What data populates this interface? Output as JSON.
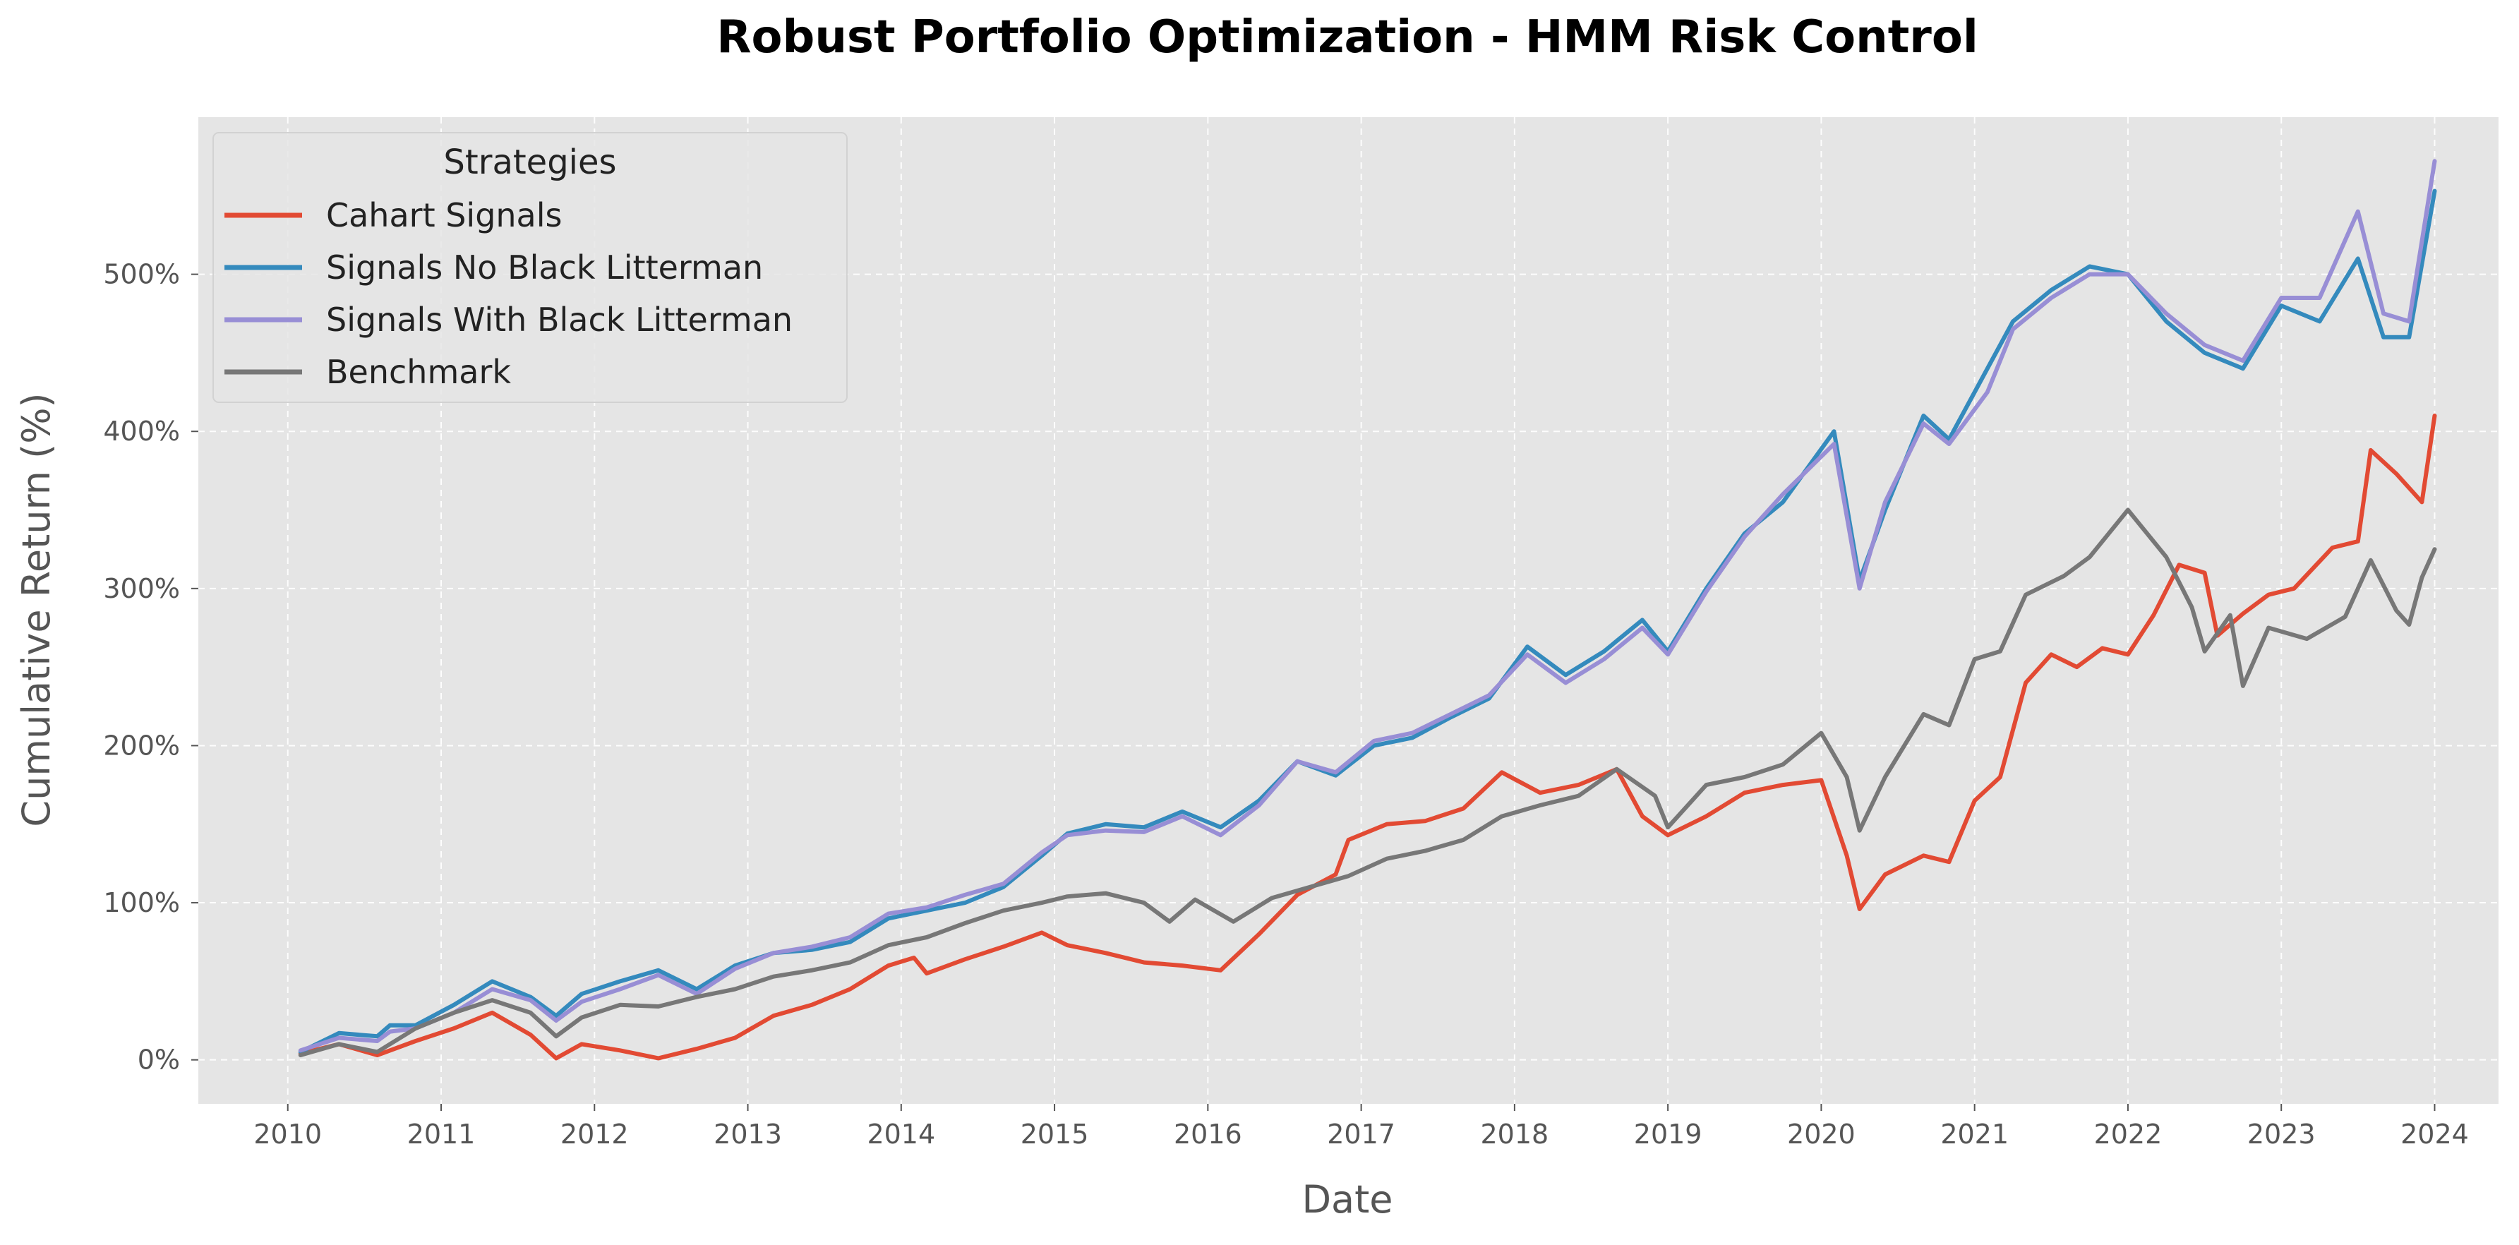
{
  "chart_data": {
    "type": "line",
    "title": "Robust Portfolio Optimization - HMM Risk Control",
    "xlabel": "Date",
    "ylabel": "Cumulative Return (%)",
    "xlim": [
      "2009-06",
      "2024-06"
    ],
    "ylim": [
      -28,
      600
    ],
    "x_ticks": [
      "2010",
      "2011",
      "2012",
      "2013",
      "2014",
      "2015",
      "2016",
      "2017",
      "2018",
      "2019",
      "2020",
      "2021",
      "2022",
      "2023",
      "2024"
    ],
    "y_ticks": [
      0,
      100,
      200,
      300,
      400,
      500
    ],
    "y_tick_labels": [
      "0%",
      "100%",
      "200%",
      "300%",
      "400%",
      "500%"
    ],
    "grid": true,
    "legend": {
      "title": "Strategies",
      "location": "top-left"
    },
    "colors": {
      "background": "#e5e5e5",
      "grid": "#ffffff"
    },
    "series": [
      {
        "name": "Cahart Signals",
        "color": "#e24a33",
        "points": [
          [
            "2010-02",
            4
          ],
          [
            "2010-05",
            10
          ],
          [
            "2010-08",
            3
          ],
          [
            "2010-11",
            12
          ],
          [
            "2011-02",
            20
          ],
          [
            "2011-05",
            30
          ],
          [
            "2011-08",
            16
          ],
          [
            "2011-10",
            1
          ],
          [
            "2011-12",
            10
          ],
          [
            "2012-03",
            6
          ],
          [
            "2012-06",
            1
          ],
          [
            "2012-09",
            7
          ],
          [
            "2012-12",
            14
          ],
          [
            "2013-03",
            28
          ],
          [
            "2013-06",
            35
          ],
          [
            "2013-09",
            45
          ],
          [
            "2013-12",
            60
          ],
          [
            "2014-02",
            65
          ],
          [
            "2014-03",
            55
          ],
          [
            "2014-06",
            64
          ],
          [
            "2014-09",
            72
          ],
          [
            "2014-12",
            81
          ],
          [
            "2015-02",
            73
          ],
          [
            "2015-05",
            68
          ],
          [
            "2015-08",
            62
          ],
          [
            "2015-11",
            60
          ],
          [
            "2016-02",
            57
          ],
          [
            "2016-05",
            80
          ],
          [
            "2016-08",
            105
          ],
          [
            "2016-11",
            118
          ],
          [
            "2016-12",
            140
          ],
          [
            "2017-03",
            150
          ],
          [
            "2017-06",
            152
          ],
          [
            "2017-09",
            160
          ],
          [
            "2017-12",
            183
          ],
          [
            "2018-03",
            170
          ],
          [
            "2018-06",
            175
          ],
          [
            "2018-09",
            185
          ],
          [
            "2018-11",
            155
          ],
          [
            "2019-01",
            143
          ],
          [
            "2019-04",
            155
          ],
          [
            "2019-07",
            170
          ],
          [
            "2019-10",
            175
          ],
          [
            "2020-01",
            178
          ],
          [
            "2020-03",
            130
          ],
          [
            "2020-04",
            96
          ],
          [
            "2020-06",
            118
          ],
          [
            "2020-09",
            130
          ],
          [
            "2020-11",
            126
          ],
          [
            "2021-01",
            165
          ],
          [
            "2021-03",
            180
          ],
          [
            "2021-05",
            240
          ],
          [
            "2021-07",
            258
          ],
          [
            "2021-09",
            250
          ],
          [
            "2021-11",
            262
          ],
          [
            "2022-01",
            258
          ],
          [
            "2022-03",
            283
          ],
          [
            "2022-05",
            315
          ],
          [
            "2022-07",
            310
          ],
          [
            "2022-08",
            270
          ],
          [
            "2022-10",
            284
          ],
          [
            "2022-12",
            296
          ],
          [
            "2023-02",
            300
          ],
          [
            "2023-05",
            326
          ],
          [
            "2023-07",
            330
          ],
          [
            "2023-08",
            388
          ],
          [
            "2023-10",
            373
          ],
          [
            "2023-12",
            355
          ],
          [
            "2024-01",
            410
          ]
        ]
      },
      {
        "name": "Signals No Black Litterman",
        "color": "#348abd",
        "points": [
          [
            "2010-02",
            5
          ],
          [
            "2010-05",
            17
          ],
          [
            "2010-08",
            15
          ],
          [
            "2010-09",
            22
          ],
          [
            "2010-11",
            22
          ],
          [
            "2011-02",
            35
          ],
          [
            "2011-05",
            50
          ],
          [
            "2011-08",
            40
          ],
          [
            "2011-10",
            28
          ],
          [
            "2011-12",
            42
          ],
          [
            "2012-03",
            50
          ],
          [
            "2012-06",
            57
          ],
          [
            "2012-09",
            45
          ],
          [
            "2012-12",
            60
          ],
          [
            "2013-03",
            68
          ],
          [
            "2013-06",
            70
          ],
          [
            "2013-09",
            75
          ],
          [
            "2013-12",
            90
          ],
          [
            "2014-03",
            95
          ],
          [
            "2014-06",
            100
          ],
          [
            "2014-09",
            110
          ],
          [
            "2014-12",
            130
          ],
          [
            "2015-02",
            144
          ],
          [
            "2015-05",
            150
          ],
          [
            "2015-08",
            148
          ],
          [
            "2015-11",
            158
          ],
          [
            "2016-02",
            148
          ],
          [
            "2016-05",
            165
          ],
          [
            "2016-08",
            190
          ],
          [
            "2016-11",
            181
          ],
          [
            "2017-02",
            200
          ],
          [
            "2017-05",
            205
          ],
          [
            "2017-08",
            218
          ],
          [
            "2017-11",
            230
          ],
          [
            "2018-02",
            263
          ],
          [
            "2018-05",
            245
          ],
          [
            "2018-08",
            260
          ],
          [
            "2018-11",
            280
          ],
          [
            "2019-01",
            260
          ],
          [
            "2019-04",
            300
          ],
          [
            "2019-07",
            335
          ],
          [
            "2019-10",
            355
          ],
          [
            "2020-02",
            400
          ],
          [
            "2020-04",
            305
          ],
          [
            "2020-06",
            350
          ],
          [
            "2020-09",
            410
          ],
          [
            "2020-11",
            395
          ],
          [
            "2021-02",
            440
          ],
          [
            "2021-04",
            470
          ],
          [
            "2021-07",
            490
          ],
          [
            "2021-10",
            505
          ],
          [
            "2022-01",
            500
          ],
          [
            "2022-04",
            470
          ],
          [
            "2022-07",
            450
          ],
          [
            "2022-10",
            440
          ],
          [
            "2023-01",
            480
          ],
          [
            "2023-04",
            470
          ],
          [
            "2023-07",
            510
          ],
          [
            "2023-09",
            460
          ],
          [
            "2023-11",
            460
          ],
          [
            "2024-01",
            553
          ]
        ]
      },
      {
        "name": "Signals With Black Litterman",
        "color": "#988ed5",
        "points": [
          [
            "2010-02",
            6
          ],
          [
            "2010-05",
            14
          ],
          [
            "2010-08",
            12
          ],
          [
            "2010-09",
            18
          ],
          [
            "2010-11",
            20
          ],
          [
            "2011-02",
            30
          ],
          [
            "2011-05",
            45
          ],
          [
            "2011-08",
            38
          ],
          [
            "2011-10",
            25
          ],
          [
            "2011-12",
            37
          ],
          [
            "2012-03",
            45
          ],
          [
            "2012-06",
            54
          ],
          [
            "2012-09",
            42
          ],
          [
            "2012-12",
            58
          ],
          [
            "2013-03",
            68
          ],
          [
            "2013-06",
            72
          ],
          [
            "2013-09",
            78
          ],
          [
            "2013-12",
            93
          ],
          [
            "2014-03",
            97
          ],
          [
            "2014-06",
            105
          ],
          [
            "2014-09",
            112
          ],
          [
            "2014-12",
            132
          ],
          [
            "2015-02",
            143
          ],
          [
            "2015-05",
            146
          ],
          [
            "2015-08",
            145
          ],
          [
            "2015-11",
            155
          ],
          [
            "2016-02",
            143
          ],
          [
            "2016-05",
            162
          ],
          [
            "2016-08",
            190
          ],
          [
            "2016-11",
            183
          ],
          [
            "2017-02",
            203
          ],
          [
            "2017-05",
            208
          ],
          [
            "2017-08",
            220
          ],
          [
            "2017-11",
            232
          ],
          [
            "2018-02",
            258
          ],
          [
            "2018-05",
            240
          ],
          [
            "2018-08",
            255
          ],
          [
            "2018-11",
            275
          ],
          [
            "2019-01",
            258
          ],
          [
            "2019-04",
            298
          ],
          [
            "2019-07",
            333
          ],
          [
            "2019-10",
            360
          ],
          [
            "2020-02",
            392
          ],
          [
            "2020-04",
            300
          ],
          [
            "2020-06",
            355
          ],
          [
            "2020-09",
            405
          ],
          [
            "2020-11",
            392
          ],
          [
            "2021-02",
            425
          ],
          [
            "2021-04",
            465
          ],
          [
            "2021-07",
            485
          ],
          [
            "2021-10",
            500
          ],
          [
            "2022-01",
            500
          ],
          [
            "2022-04",
            475
          ],
          [
            "2022-07",
            455
          ],
          [
            "2022-10",
            445
          ],
          [
            "2023-01",
            485
          ],
          [
            "2023-04",
            485
          ],
          [
            "2023-07",
            540
          ],
          [
            "2023-09",
            475
          ],
          [
            "2023-11",
            470
          ],
          [
            "2024-01",
            572
          ]
        ]
      },
      {
        "name": "Benchmark",
        "color": "#777777",
        "points": [
          [
            "2010-02",
            3
          ],
          [
            "2010-05",
            10
          ],
          [
            "2010-08",
            5
          ],
          [
            "2010-11",
            20
          ],
          [
            "2011-02",
            30
          ],
          [
            "2011-05",
            38
          ],
          [
            "2011-08",
            30
          ],
          [
            "2011-10",
            15
          ],
          [
            "2011-12",
            27
          ],
          [
            "2012-03",
            35
          ],
          [
            "2012-06",
            34
          ],
          [
            "2012-09",
            40
          ],
          [
            "2012-12",
            45
          ],
          [
            "2013-03",
            53
          ],
          [
            "2013-06",
            57
          ],
          [
            "2013-09",
            62
          ],
          [
            "2013-12",
            73
          ],
          [
            "2014-03",
            78
          ],
          [
            "2014-06",
            87
          ],
          [
            "2014-09",
            95
          ],
          [
            "2014-12",
            100
          ],
          [
            "2015-02",
            104
          ],
          [
            "2015-05",
            106
          ],
          [
            "2015-08",
            100
          ],
          [
            "2015-10",
            88
          ],
          [
            "2015-12",
            102
          ],
          [
            "2016-03",
            88
          ],
          [
            "2016-06",
            103
          ],
          [
            "2016-09",
            110
          ],
          [
            "2016-12",
            117
          ],
          [
            "2017-03",
            128
          ],
          [
            "2017-06",
            133
          ],
          [
            "2017-09",
            140
          ],
          [
            "2017-12",
            155
          ],
          [
            "2018-03",
            162
          ],
          [
            "2018-06",
            168
          ],
          [
            "2018-09",
            185
          ],
          [
            "2018-12",
            168
          ],
          [
            "2019-01",
            148
          ],
          [
            "2019-04",
            175
          ],
          [
            "2019-07",
            180
          ],
          [
            "2019-10",
            188
          ],
          [
            "2020-01",
            208
          ],
          [
            "2020-03",
            180
          ],
          [
            "2020-04",
            146
          ],
          [
            "2020-06",
            180
          ],
          [
            "2020-09",
            220
          ],
          [
            "2020-11",
            213
          ],
          [
            "2021-01",
            255
          ],
          [
            "2021-03",
            260
          ],
          [
            "2021-05",
            296
          ],
          [
            "2021-08",
            308
          ],
          [
            "2021-10",
            320
          ],
          [
            "2022-01",
            350
          ],
          [
            "2022-04",
            320
          ],
          [
            "2022-06",
            288
          ],
          [
            "2022-07",
            260
          ],
          [
            "2022-09",
            283
          ],
          [
            "2022-10",
            238
          ],
          [
            "2022-12",
            275
          ],
          [
            "2023-03",
            268
          ],
          [
            "2023-06",
            282
          ],
          [
            "2023-08",
            318
          ],
          [
            "2023-10",
            286
          ],
          [
            "2023-11",
            277
          ],
          [
            "2023-12",
            307
          ],
          [
            "2024-01",
            325
          ]
        ]
      }
    ]
  }
}
